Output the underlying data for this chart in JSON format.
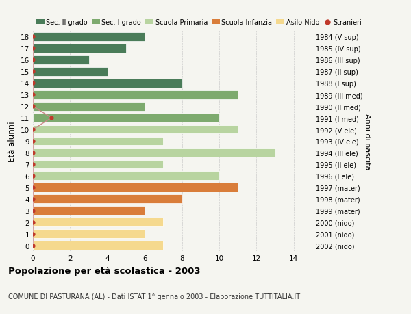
{
  "ages": [
    18,
    17,
    16,
    15,
    14,
    13,
    12,
    11,
    10,
    9,
    8,
    7,
    6,
    5,
    4,
    3,
    2,
    1,
    0
  ],
  "right_labels": [
    "1984 (V sup)",
    "1985 (IV sup)",
    "1986 (III sup)",
    "1987 (II sup)",
    "1988 (I sup)",
    "1989 (III med)",
    "1990 (II med)",
    "1991 (I med)",
    "1992 (V ele)",
    "1993 (IV ele)",
    "1994 (III ele)",
    "1995 (II ele)",
    "1996 (I ele)",
    "1997 (mater)",
    "1998 (mater)",
    "1999 (mater)",
    "2000 (nido)",
    "2001 (nido)",
    "2002 (nido)"
  ],
  "bar_values": [
    6,
    5,
    3,
    4,
    8,
    11,
    6,
    10,
    11,
    7,
    13,
    7,
    10,
    11,
    8,
    6,
    7,
    6,
    7
  ],
  "bar_colors": [
    "#4a7c59",
    "#4a7c59",
    "#4a7c59",
    "#4a7c59",
    "#4a7c59",
    "#7daa6e",
    "#7daa6e",
    "#7daa6e",
    "#b8d4a0",
    "#b8d4a0",
    "#b8d4a0",
    "#b8d4a0",
    "#b8d4a0",
    "#d97d3a",
    "#d97d3a",
    "#d97d3a",
    "#f5d98e",
    "#f5d98e",
    "#f5d98e"
  ],
  "stranieri_x": [
    0,
    0,
    0,
    0,
    0,
    0,
    0,
    1,
    0,
    0,
    0,
    0,
    0,
    0,
    0,
    0,
    0,
    0,
    0
  ],
  "xlim": [
    0,
    15
  ],
  "ylabel": "Età alunni",
  "right_ylabel": "Anni di nascita",
  "legend_labels": [
    "Sec. II grado",
    "Sec. I grado",
    "Scuola Primaria",
    "Scuola Infanzia",
    "Asilo Nido",
    "Stranieri"
  ],
  "legend_colors": [
    "#4a7c59",
    "#7daa6e",
    "#b8d4a0",
    "#d97d3a",
    "#f5d98e",
    "#c0392b"
  ],
  "title": "Popolazione per età scolastica - 2003",
  "subtitle": "COMUNE DI PASTURANA (AL) - Dati ISTAT 1° gennaio 2003 - Elaborazione TUTTITALIA.IT",
  "bg_color": "#f5f5f0",
  "bar_height": 0.75,
  "dot_color": "#c0392b",
  "dot_line_color": "#cc8888"
}
